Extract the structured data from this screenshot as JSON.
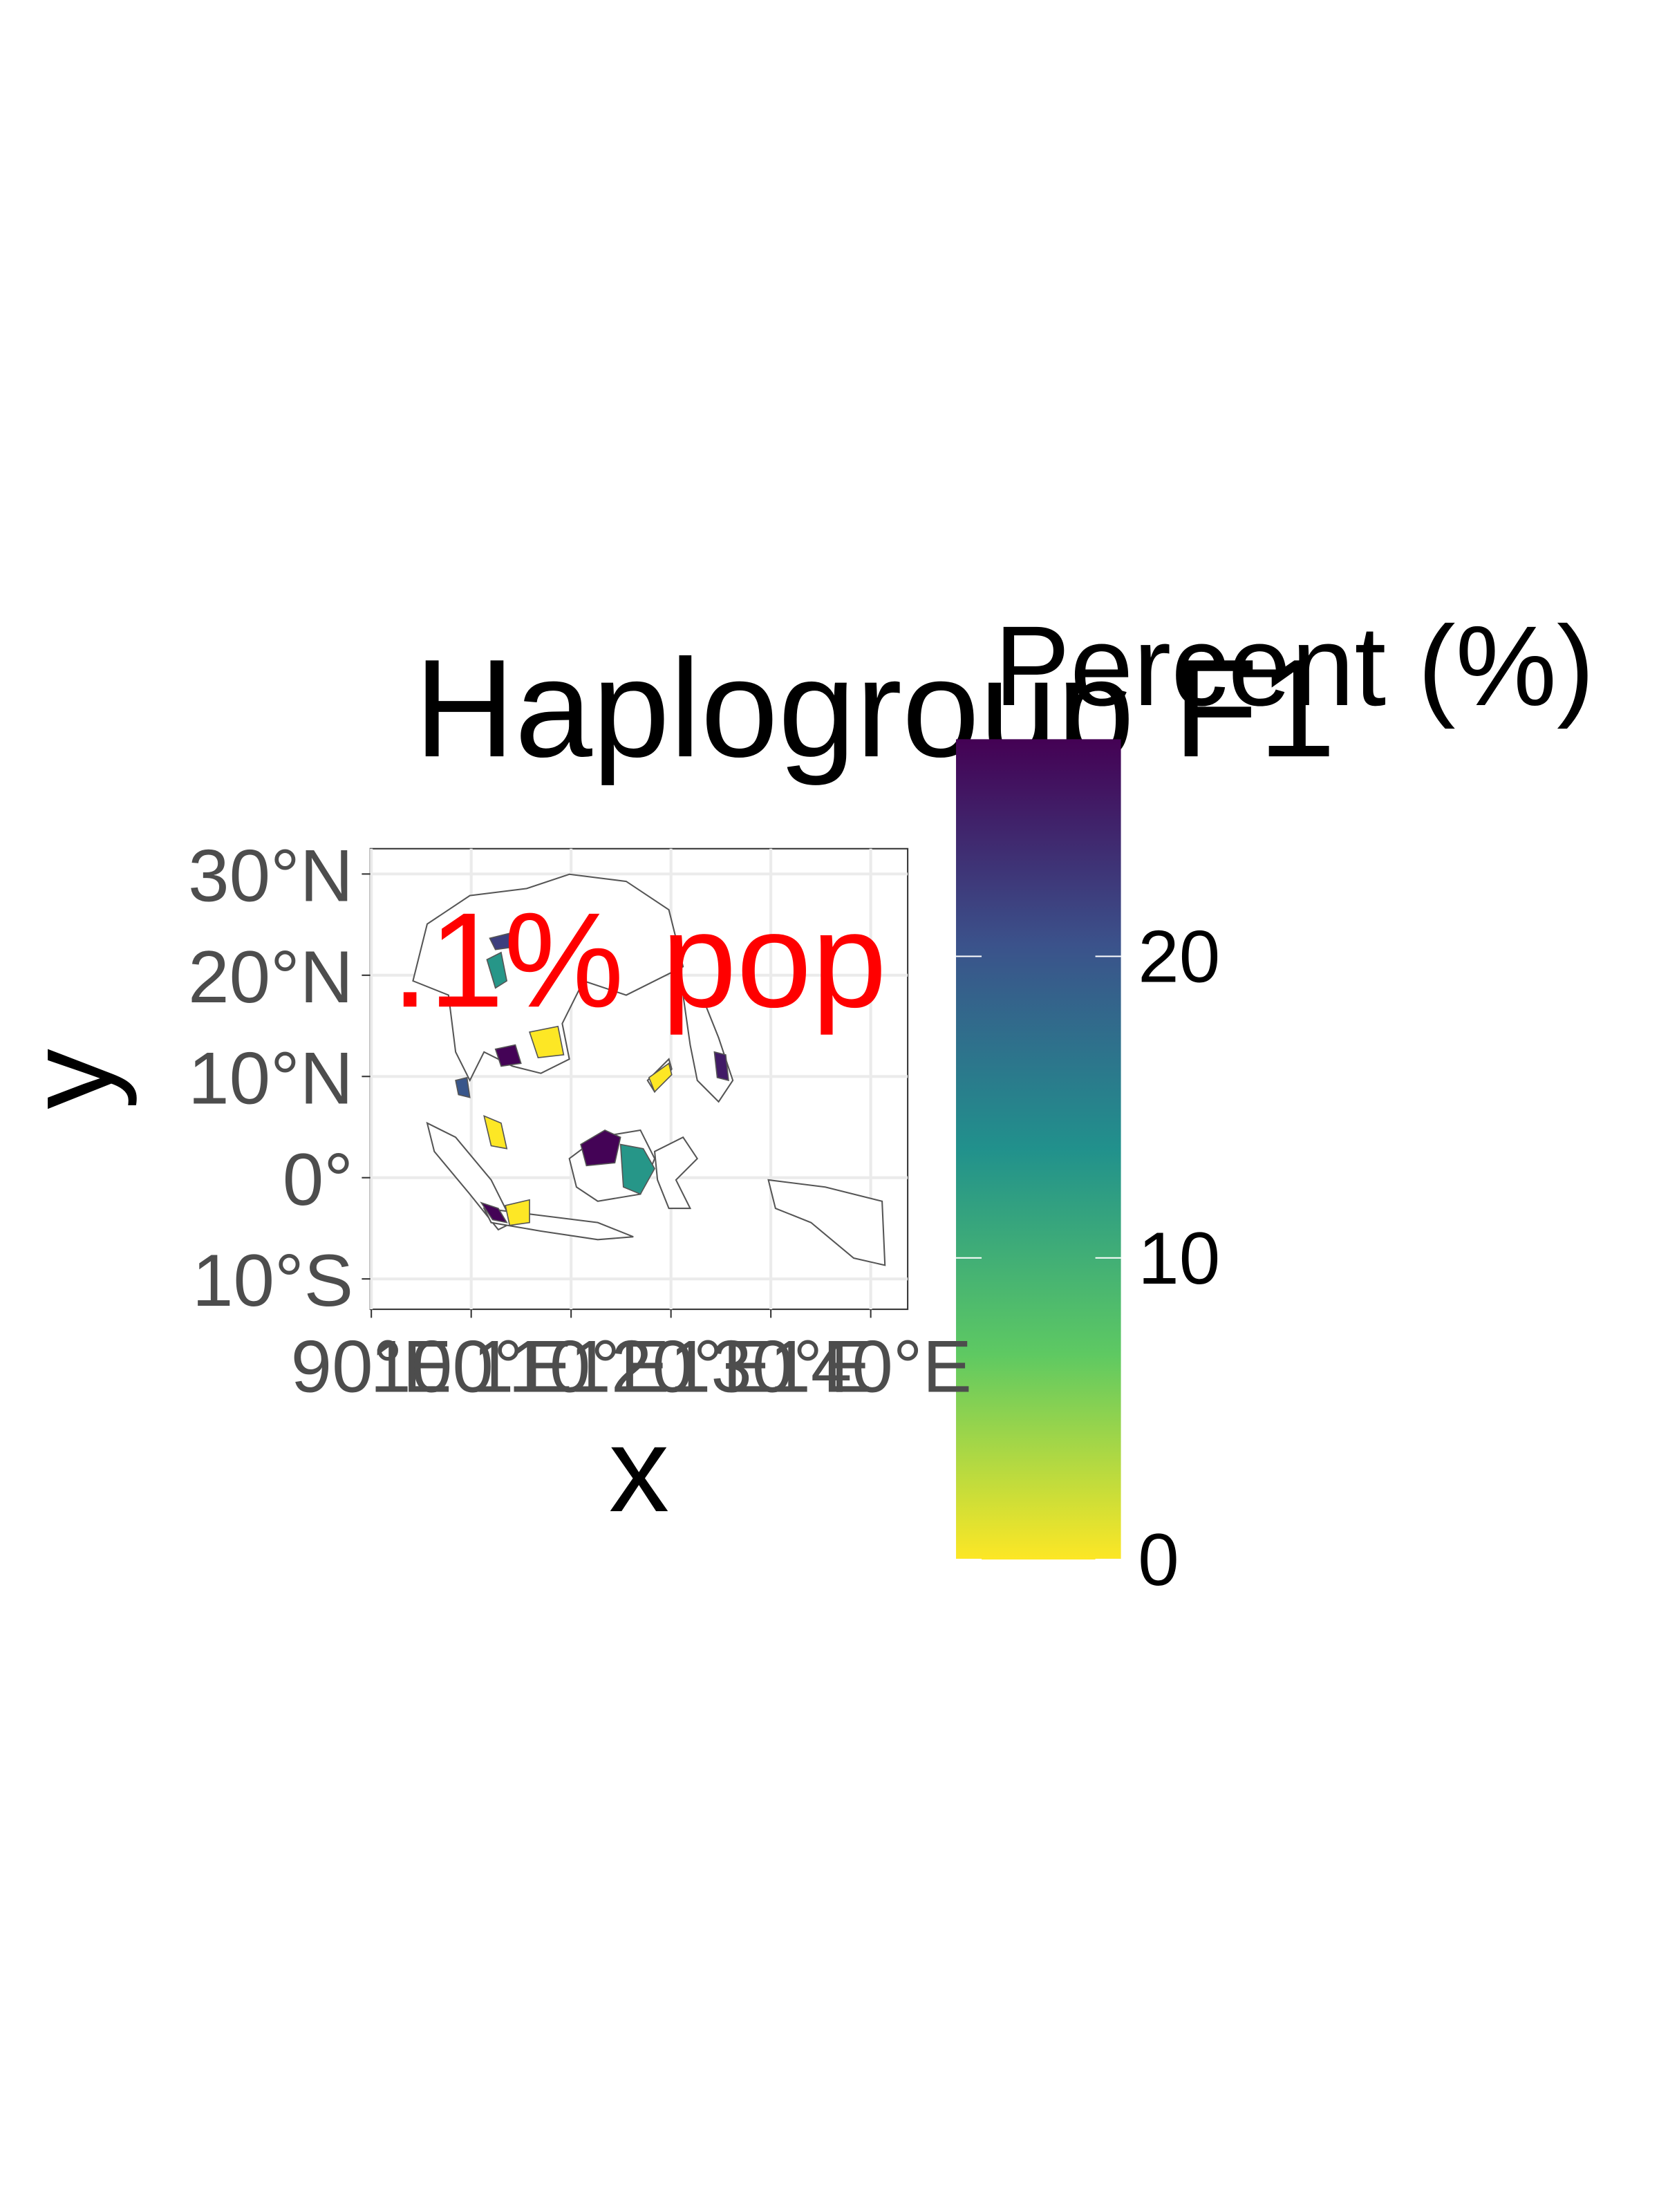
{
  "chart_data": {
    "type": "choropleth",
    "title": "Haplogroup F1",
    "annotation": ".1% pop",
    "x_label": "x",
    "y_label": "y",
    "xlim": [
      89.9,
      143.7
    ],
    "ylim": [
      -13,
      32.5
    ],
    "xticks": [
      {
        "value": 90,
        "label": "90°E"
      },
      {
        "value": 100,
        "label": "100°E"
      },
      {
        "value": 110,
        "label": "110°E"
      },
      {
        "value": 120,
        "label": "120°E"
      },
      {
        "value": 130,
        "label": "130°E"
      },
      {
        "value": 140,
        "label": "140°E"
      }
    ],
    "yticks": [
      {
        "value": 30,
        "label": "30°N"
      },
      {
        "value": 20,
        "label": "20°N"
      },
      {
        "value": 10,
        "label": "10°N"
      },
      {
        "value": 0,
        "label": "0°"
      },
      {
        "value": -10,
        "label": "10°S"
      }
    ],
    "grid": true,
    "legend_title": "Percent (%)",
    "legend_lim": [
      0,
      27.2
    ],
    "legend_ticks": [
      0,
      10,
      20
    ],
    "colorscale": [
      "#fde725",
      "#5ec962",
      "#21918c",
      "#3b528b",
      "#440154"
    ],
    "values": [
      27,
      13,
      0,
      27,
      0,
      13,
      27,
      0,
      25,
      0,
      20,
      22
    ]
  }
}
